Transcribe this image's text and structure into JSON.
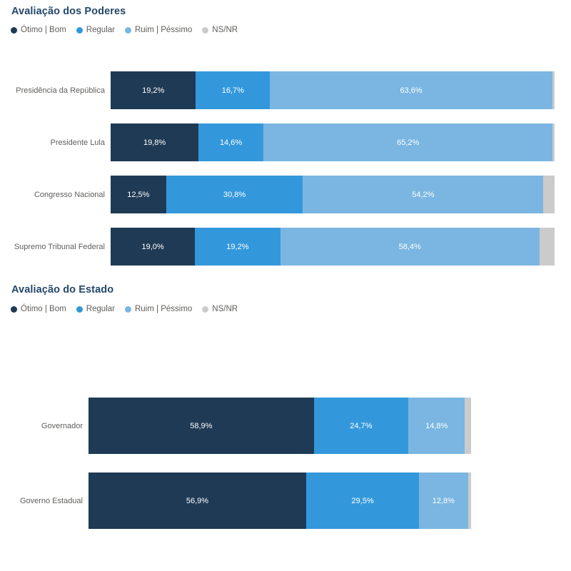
{
  "colors": {
    "otimo_bom": "#1F3A55",
    "regular": "#3398DB",
    "ruim_pessimo": "#7AB6E1",
    "ns_nr": "#CBCBCB",
    "title_text": "#24476B",
    "axis_text": "#605E5C",
    "value_label_text": "#FFFFFF"
  },
  "chart_data": [
    {
      "type": "bar",
      "orientation": "horizontal",
      "stacked": true,
      "title": "Avaliação dos Poderes",
      "legend_position": "top",
      "xlim": [
        0,
        100
      ],
      "grid": false,
      "categories": [
        "Presidência da República",
        "Presidente Lula",
        "Congresso Nacional",
        "Supremo Tribunal Federal"
      ],
      "series": [
        {
          "name": "Ótimo | Bom",
          "color": "#1F3A55",
          "show_labels": true,
          "values": [
            19.2,
            19.8,
            12.5,
            19.0
          ]
        },
        {
          "name": "Regular",
          "color": "#3398DB",
          "show_labels": true,
          "values": [
            16.7,
            14.6,
            30.8,
            19.2
          ]
        },
        {
          "name": "Ruim | Péssimo",
          "color": "#7AB6E1",
          "show_labels": true,
          "values": [
            63.6,
            65.2,
            54.2,
            58.4
          ]
        },
        {
          "name": "NS/NR",
          "color": "#CBCBCB",
          "show_labels": false,
          "values": [
            0.5,
            0.4,
            2.5,
            3.4
          ]
        }
      ],
      "value_label_format": "comma-decimal-percent"
    },
    {
      "type": "bar",
      "orientation": "horizontal",
      "stacked": true,
      "title": "Avaliação do Estado",
      "legend_position": "top",
      "xlim": [
        0,
        100
      ],
      "grid": false,
      "categories": [
        "Governador",
        "Governo Estadual"
      ],
      "series": [
        {
          "name": "Ótimo | Bom",
          "color": "#1F3A55",
          "show_labels": true,
          "values": [
            58.9,
            56.9
          ]
        },
        {
          "name": "Regular",
          "color": "#3398DB",
          "show_labels": true,
          "values": [
            24.7,
            29.5
          ]
        },
        {
          "name": "Ruim | Péssimo",
          "color": "#7AB6E1",
          "show_labels": true,
          "values": [
            14.8,
            12.8
          ]
        },
        {
          "name": "NS/NR",
          "color": "#CBCBCB",
          "show_labels": false,
          "values": [
            1.6,
            0.8
          ]
        }
      ],
      "value_label_format": "comma-decimal-percent"
    }
  ]
}
